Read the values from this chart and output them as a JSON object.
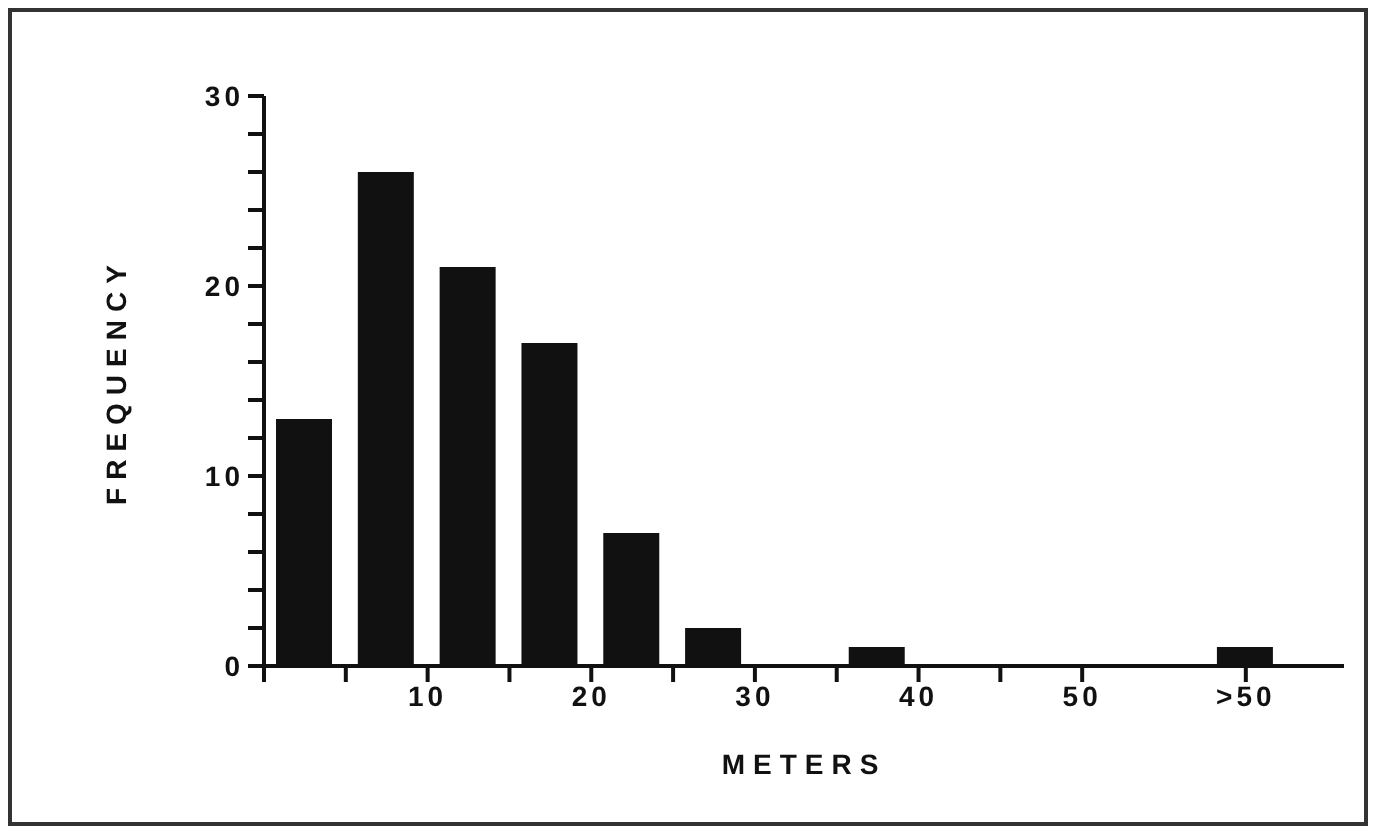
{
  "chart_data": {
    "type": "bar",
    "xlabel": "METERS",
    "ylabel": "FREQUENCY",
    "x": [
      2.5,
      7.5,
      12.5,
      17.5,
      22.5,
      27.5,
      32.5,
      37.5,
      42.5,
      47.5,
      60
    ],
    "values": [
      13,
      26,
      21,
      17,
      7,
      2,
      0,
      1,
      0,
      0,
      1
    ],
    "color": "#111111",
    "xlim": [
      0,
      66
    ],
    "xticks": [
      {
        "value": 0,
        "label": null
      },
      {
        "value": 5,
        "label": null
      },
      10,
      {
        "value": 15,
        "label": null
      },
      20,
      {
        "value": 25,
        "label": null
      },
      30,
      {
        "value": 35,
        "label": null
      },
      40,
      {
        "value": 45,
        "label": null
      },
      50,
      {
        "value": 60,
        "label": ">50"
      }
    ],
    "ylim": [
      0,
      30
    ],
    "yticks": [
      0,
      {
        "value": 2,
        "label": null
      },
      {
        "value": 4,
        "label": null
      },
      {
        "value": 6,
        "label": null
      },
      {
        "value": 8,
        "label": null
      },
      10,
      {
        "value": 12,
        "label": null
      },
      {
        "value": 14,
        "label": null
      },
      {
        "value": 16,
        "label": null
      },
      {
        "value": 18,
        "label": null
      },
      20,
      {
        "value": 22,
        "label": null
      },
      {
        "value": 24,
        "label": null
      },
      {
        "value": 26,
        "label": null
      },
      {
        "value": 28,
        "label": null
      },
      30
    ],
    "grid": false,
    "legend": false
  }
}
